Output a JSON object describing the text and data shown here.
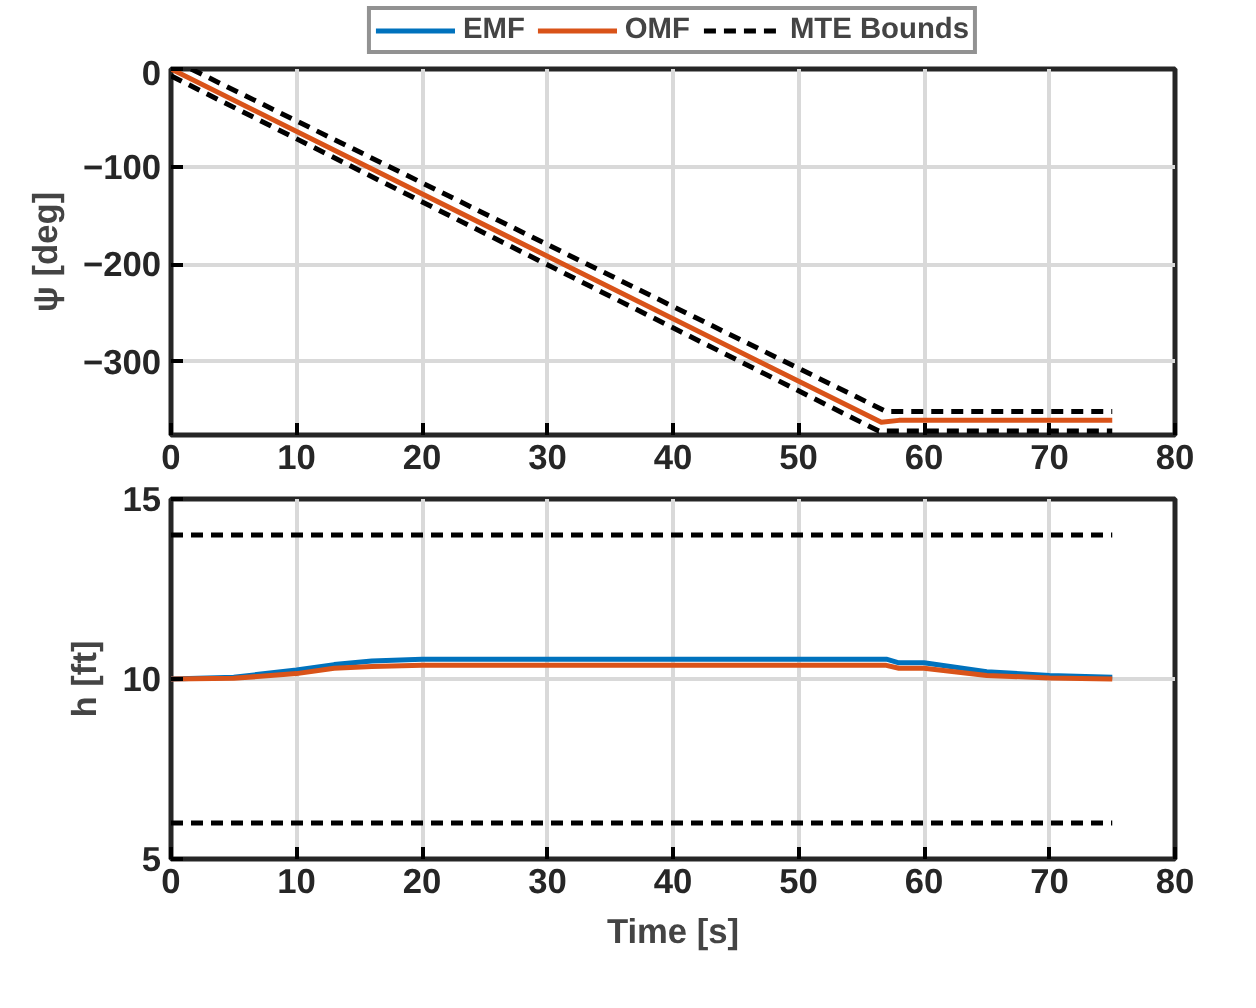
{
  "chart_data": [
    {
      "type": "line",
      "ylabel": "ψ [deg]",
      "xlim": [
        0,
        80
      ],
      "ylim": [
        -375,
        0
      ],
      "xticks": [
        0,
        10,
        20,
        30,
        40,
        50,
        60,
        70,
        80
      ],
      "yticks": [
        -300,
        -200,
        -100,
        0
      ],
      "grid": true,
      "marker": "none",
      "series": [
        {
          "color": "#d95319",
          "x": [
            0,
            56.6,
            58,
            75
          ],
          "values": [
            0,
            -362,
            -360,
            -360
          ],
          "line_style": "solid"
        },
        {
          "color": "#000000",
          "x": [
            1.6,
            57,
            75
          ],
          "values": [
            0,
            -351,
            -351
          ],
          "line_style": "dashed"
        },
        {
          "color": "#000000",
          "x": [
            0,
            56.4,
            75
          ],
          "values": [
            -7,
            -371,
            -371
          ],
          "line_style": "dashed"
        }
      ]
    },
    {
      "type": "line",
      "xlabel": "Time [s]",
      "ylabel": "h [ft]",
      "xlim": [
        0,
        80
      ],
      "ylim": [
        5,
        15
      ],
      "xticks": [
        0,
        10,
        20,
        30,
        40,
        50,
        60,
        70,
        80
      ],
      "yticks": [
        5,
        10,
        15
      ],
      "grid": true,
      "legend": "top",
      "marker": "none",
      "series": [
        {
          "name": "EMF",
          "color": "#0072bd",
          "x": [
            0,
            5,
            10,
            13,
            16,
            20,
            57,
            58,
            60,
            65,
            70,
            75
          ],
          "values": [
            10,
            10.05,
            10.25,
            10.4,
            10.5,
            10.55,
            10.55,
            10.45,
            10.45,
            10.2,
            10.1,
            10.05
          ],
          "line_style": "solid"
        },
        {
          "name": "OMF",
          "color": "#d95319",
          "x": [
            0,
            5,
            10,
            13,
            16,
            20,
            57,
            58,
            60,
            65,
            70,
            75
          ],
          "values": [
            10,
            10.02,
            10.15,
            10.3,
            10.35,
            10.38,
            10.38,
            10.3,
            10.3,
            10.1,
            10.03,
            10
          ],
          "line_style": "solid"
        },
        {
          "name": "MTE Bounds",
          "color": "#000000",
          "x": [
            0,
            75
          ],
          "values": [
            14,
            14
          ],
          "line_style": "dashed"
        },
        {
          "color": "#000000",
          "x": [
            0,
            75
          ],
          "values": [
            6,
            6
          ],
          "line_style": "dashed"
        }
      ]
    }
  ]
}
